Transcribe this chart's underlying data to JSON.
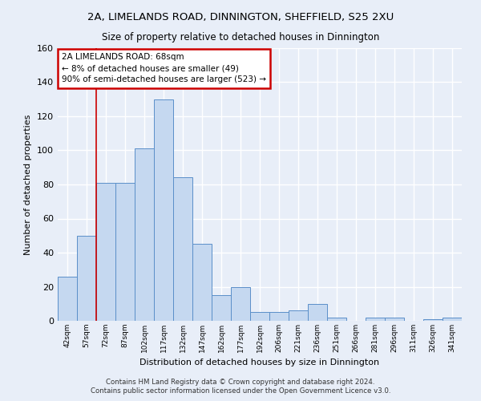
{
  "title1": "2A, LIMELANDS ROAD, DINNINGTON, SHEFFIELD, S25 2XU",
  "title2": "Size of property relative to detached houses in Dinnington",
  "xlabel": "Distribution of detached houses by size in Dinnington",
  "ylabel": "Number of detached properties",
  "categories": [
    "42sqm",
    "57sqm",
    "72sqm",
    "87sqm",
    "102sqm",
    "117sqm",
    "132sqm",
    "147sqm",
    "162sqm",
    "177sqm",
    "192sqm",
    "206sqm",
    "221sqm",
    "236sqm",
    "251sqm",
    "266sqm",
    "281sqm",
    "296sqm",
    "311sqm",
    "326sqm",
    "341sqm"
  ],
  "values": [
    26,
    50,
    81,
    81,
    101,
    130,
    84,
    45,
    15,
    20,
    5,
    5,
    6,
    10,
    2,
    0,
    2,
    2,
    0,
    1,
    2
  ],
  "bar_color": "#c5d8f0",
  "bar_edge_color": "#5b8fc9",
  "vline_x": 1.5,
  "vline_color": "#cc0000",
  "annotation_text": "2A LIMELANDS ROAD: 68sqm\n← 8% of detached houses are smaller (49)\n90% of semi-detached houses are larger (523) →",
  "annotation_box_color": "white",
  "annotation_box_edge_color": "#cc0000",
  "ylim": [
    0,
    160
  ],
  "yticks": [
    0,
    20,
    40,
    60,
    80,
    100,
    120,
    140,
    160
  ],
  "footer": "Contains HM Land Registry data © Crown copyright and database right 2024.\nContains public sector information licensed under the Open Government Licence v3.0.",
  "bg_color": "#e8eef8",
  "plot_bg_color": "#e8eef8",
  "grid_color": "#ffffff"
}
